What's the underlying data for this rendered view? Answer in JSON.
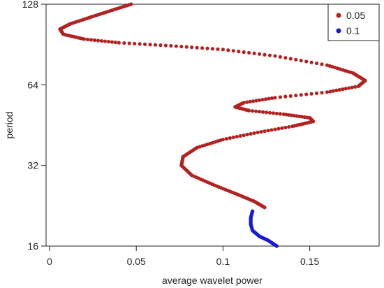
{
  "chart_data": {
    "type": "line",
    "xlabel": "average wavelet power",
    "ylabel": "period",
    "x_ticks": [
      "0",
      "0.05",
      "0.1",
      "0.15"
    ],
    "y_ticks": [
      "16",
      "32",
      "64",
      "128"
    ],
    "xlim": [
      -0.002,
      0.19
    ],
    "ylim": [
      16,
      128
    ],
    "y_scale": "log2",
    "grid": false,
    "legend_position": "top-right",
    "legend": [
      {
        "label": "0.05",
        "color": "#b22222"
      },
      {
        "label": "0.1",
        "color": "#1a1ad6"
      }
    ],
    "series": [
      {
        "name": "0.05",
        "color": "#b22222",
        "points": [
          [
            0.047,
            128.0
          ],
          [
            0.036,
            121.5
          ],
          [
            0.024,
            114.7
          ],
          [
            0.012,
            108.1
          ],
          [
            0.006,
            103.3
          ],
          [
            0.008,
            98.8
          ],
          [
            0.02,
            94.8
          ],
          [
            0.04,
            91.9
          ],
          [
            0.07,
            89.5
          ],
          [
            0.1,
            86.7
          ],
          [
            0.13,
            82.0
          ],
          [
            0.16,
            75.8
          ],
          [
            0.175,
            70.8
          ],
          [
            0.182,
            66.4
          ],
          [
            0.178,
            63.2
          ],
          [
            0.16,
            60.1
          ],
          [
            0.13,
            57.3
          ],
          [
            0.112,
            54.9
          ],
          [
            0.107,
            52.9
          ],
          [
            0.115,
            51.3
          ],
          [
            0.135,
            49.7
          ],
          [
            0.15,
            48.2
          ],
          [
            0.152,
            46.7
          ],
          [
            0.14,
            44.8
          ],
          [
            0.12,
            42.5
          ],
          [
            0.1,
            40.0
          ],
          [
            0.085,
            37.3
          ],
          [
            0.077,
            34.5
          ],
          [
            0.076,
            32.0
          ],
          [
            0.082,
            29.4
          ],
          [
            0.095,
            27.0
          ],
          [
            0.108,
            25.0
          ],
          [
            0.118,
            23.5
          ],
          [
            0.124,
            22.3
          ]
        ]
      },
      {
        "name": "0.1",
        "color": "#1a1ad6",
        "points": [
          [
            0.117,
            21.6
          ],
          [
            0.116,
            20.4
          ],
          [
            0.116,
            19.3
          ],
          [
            0.117,
            18.3
          ],
          [
            0.121,
            17.4
          ],
          [
            0.126,
            16.8
          ],
          [
            0.131,
            16.0
          ]
        ]
      }
    ]
  }
}
